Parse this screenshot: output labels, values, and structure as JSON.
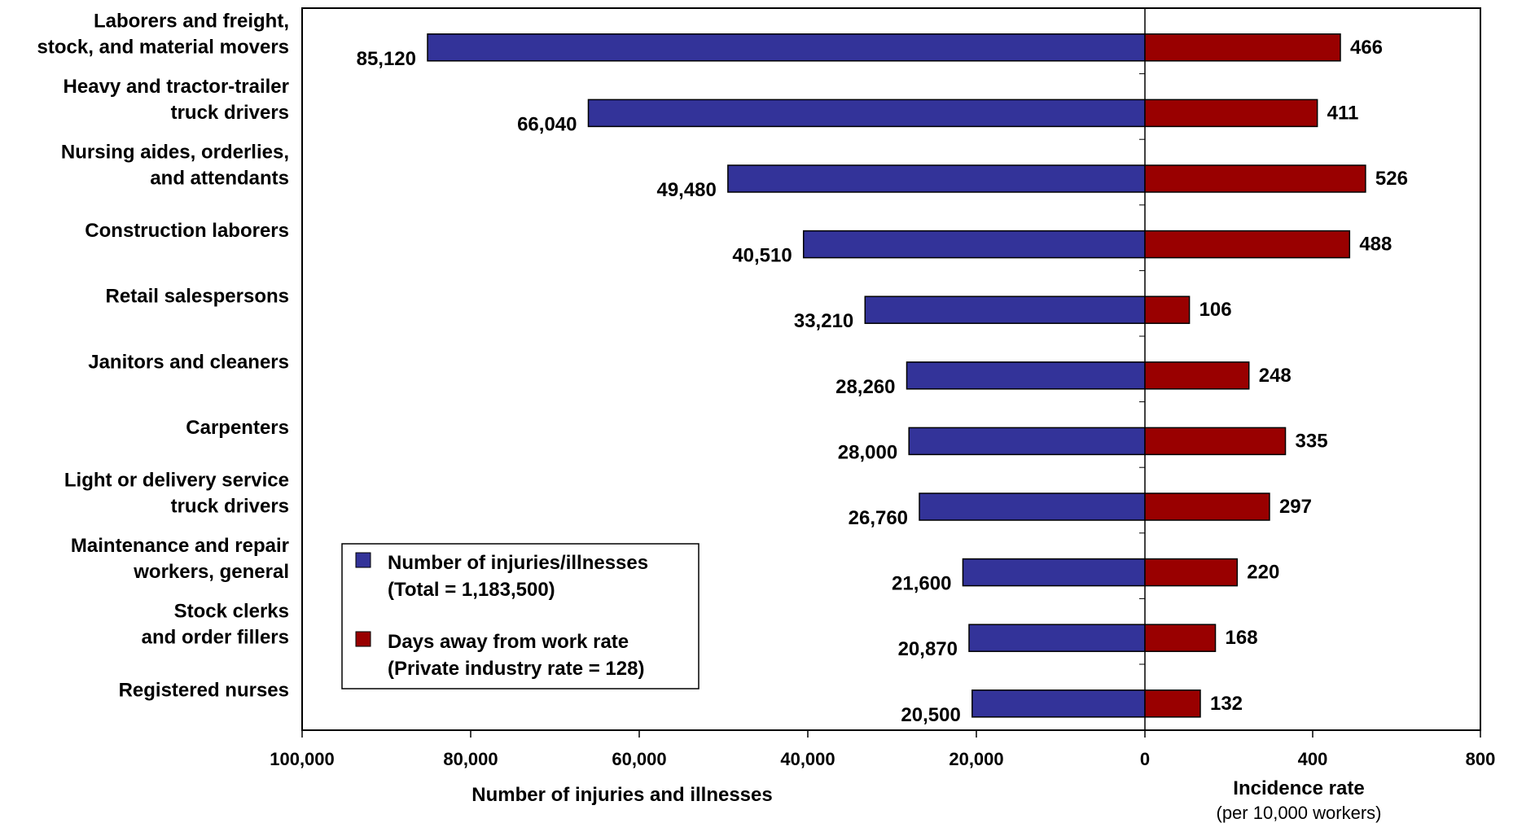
{
  "chart_data": {
    "type": "bar",
    "orientation": "horizontal",
    "layout": "butterfly",
    "categories": [
      [
        "Laborers and freight,",
        "stock, and material movers"
      ],
      [
        "Heavy and tractor-trailer",
        "truck drivers"
      ],
      [
        "Nursing aides, orderlies,",
        "and attendants"
      ],
      [
        "Construction laborers"
      ],
      [
        "Retail salespersons"
      ],
      [
        "Janitors and cleaners"
      ],
      [
        "Carpenters"
      ],
      [
        "Light or delivery service",
        "truck drivers"
      ],
      [
        "Maintenance and repair",
        "workers, general"
      ],
      [
        "Stock clerks",
        "and order fillers"
      ],
      [
        "Registered nurses"
      ]
    ],
    "series": [
      {
        "name": "Number of injuries/illnesses",
        "name_line2": "(Total = 1,183,500)",
        "color": "#333399",
        "values": [
          85120,
          66040,
          49480,
          40510,
          33210,
          28260,
          28000,
          26760,
          21600,
          20870,
          20500
        ],
        "labels": [
          "85,120",
          "66,040",
          "49,480",
          "40,510",
          "33,210",
          "28,260",
          "28,000",
          "26,760",
          "21,600",
          "20,870",
          "20,500"
        ]
      },
      {
        "name": "Days away from work rate",
        "name_line2": "(Private industry rate = 128)",
        "color": "#990000",
        "values": [
          466,
          411,
          526,
          488,
          106,
          248,
          335,
          297,
          220,
          168,
          132
        ],
        "labels": [
          "466",
          "411",
          "526",
          "488",
          "106",
          "248",
          "335",
          "297",
          "220",
          "168",
          "132"
        ]
      }
    ],
    "left_axis": {
      "xlabel": "Number of injuries and illnesses",
      "range": [
        0,
        100000
      ],
      "ticks": [
        100000,
        80000,
        60000,
        40000,
        20000,
        0
      ],
      "tick_labels": [
        "100,000",
        "80,000",
        "60,000",
        "40,000",
        "20,000",
        "0"
      ]
    },
    "right_axis": {
      "xlabel": "Incidence rate",
      "xlabel_sub": "(per 10,000 workers)",
      "range": [
        0,
        800
      ],
      "ticks": [
        400,
        800
      ],
      "tick_labels": [
        "400",
        "800"
      ]
    },
    "grid": false,
    "legend": "bottom-left"
  }
}
